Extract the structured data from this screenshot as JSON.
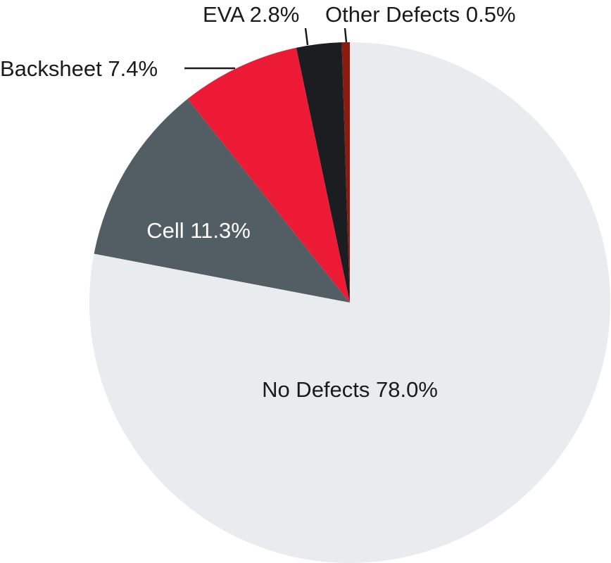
{
  "chart_data": {
    "type": "pie",
    "start_angle_deg": 0,
    "direction": "counterclockwise",
    "slices": [
      {
        "label": "Other Defects",
        "value": 0.5,
        "display": "Other Defects 0.5%",
        "color": "#8b1a10",
        "label_color": "#1a1a1a",
        "label_position": "outside"
      },
      {
        "label": "EVA",
        "value": 2.8,
        "display": "EVA 2.8%",
        "color": "#1c1d20",
        "label_color": "#1a1a1a",
        "label_position": "outside"
      },
      {
        "label": "Backsheet",
        "value": 7.4,
        "display": "Backsheet 7.4%",
        "color": "#ed1a35",
        "label_color": "#1a1a1a",
        "label_position": "outside"
      },
      {
        "label": "Cell",
        "value": 11.3,
        "display": "Cell 11.3%",
        "color": "#525e64",
        "label_color": "#ffffff",
        "label_position": "inside"
      },
      {
        "label": "No Defects",
        "value": 78.0,
        "display": "No Defects 78.0%",
        "color": "#e8ecef",
        "label_color": "#1a1a1a",
        "label_position": "inside"
      }
    ]
  }
}
